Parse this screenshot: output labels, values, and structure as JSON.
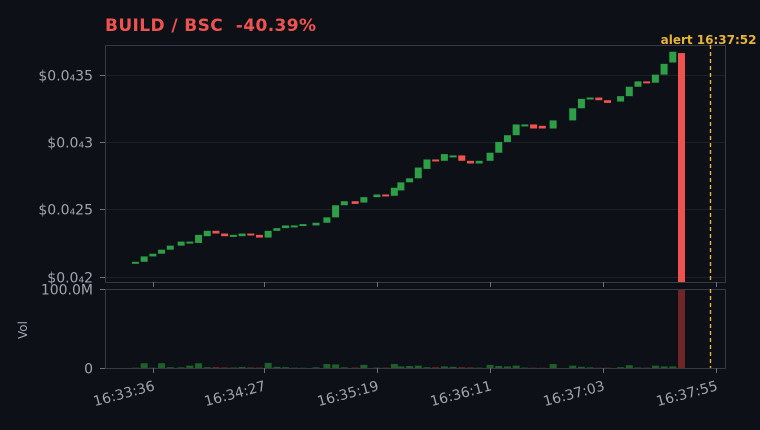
{
  "title": "BUILD / BSC  -40.39%",
  "colors": {
    "up": "#2e9e47",
    "down": "#ef5350",
    "alert": "#e8b339",
    "volUp": "#1f5f2c",
    "volDown": "#6e2626",
    "grid": "#1c2029",
    "frame": "#353a44"
  },
  "chart_data": [
    {
      "type": "candlestick",
      "title": "BUILD / BSC  -40.39%",
      "ylim": [
        1.96,
        3.72
      ],
      "y_ticks": [
        {
          "value": 2.0,
          "label": "$0.0₄2"
        },
        {
          "value": 2.5,
          "label": "$0.0₄25"
        },
        {
          "value": 3.0,
          "label": "$0.0₄3"
        },
        {
          "value": 3.5,
          "label": "$0.0₄35"
        }
      ],
      "x_ticks": [
        "16:33:36",
        "16:34:27",
        "16:35:19",
        "16:36:11",
        "16:37:03",
        "16:37:55"
      ],
      "x_tick_seconds": [
        0,
        51,
        103,
        155,
        207,
        259
      ],
      "xlim_seconds": [
        -22,
        263
      ],
      "grid": true,
      "annotations": [
        {
          "text": "alert 16:37:52",
          "x_seconds": 256
        }
      ],
      "candles": [
        {
          "t": -8,
          "o": 2.1,
          "c": 2.11
        },
        {
          "t": -4,
          "o": 2.11,
          "c": 2.15
        },
        {
          "t": 0,
          "o": 2.15,
          "c": 2.17
        },
        {
          "t": 4,
          "o": 2.17,
          "c": 2.2
        },
        {
          "t": 8,
          "o": 2.2,
          "c": 2.23
        },
        {
          "t": 13,
          "o": 2.23,
          "c": 2.26
        },
        {
          "t": 17,
          "o": 2.25,
          "c": 2.26
        },
        {
          "t": 21,
          "o": 2.25,
          "c": 2.31
        },
        {
          "t": 25,
          "o": 2.3,
          "c": 2.34
        },
        {
          "t": 29,
          "o": 2.34,
          "c": 2.32
        },
        {
          "t": 33,
          "o": 2.32,
          "c": 2.3
        },
        {
          "t": 37,
          "o": 2.3,
          "c": 2.31
        },
        {
          "t": 41,
          "o": 2.3,
          "c": 2.32
        },
        {
          "t": 45,
          "o": 2.32,
          "c": 2.31
        },
        {
          "t": 49,
          "o": 2.31,
          "c": 2.29
        },
        {
          "t": 53,
          "o": 2.29,
          "c": 2.34
        },
        {
          "t": 57,
          "o": 2.34,
          "c": 2.36
        },
        {
          "t": 61,
          "o": 2.36,
          "c": 2.38
        },
        {
          "t": 65,
          "o": 2.38,
          "c": 2.38
        },
        {
          "t": 69,
          "o": 2.38,
          "c": 2.39
        },
        {
          "t": 75,
          "o": 2.38,
          "c": 2.4
        },
        {
          "t": 80,
          "o": 2.4,
          "c": 2.44
        },
        {
          "t": 84,
          "o": 2.44,
          "c": 2.53
        },
        {
          "t": 88,
          "o": 2.53,
          "c": 2.56
        },
        {
          "t": 93,
          "o": 2.56,
          "c": 2.54
        },
        {
          "t": 97,
          "o": 2.55,
          "c": 2.59
        },
        {
          "t": 103,
          "o": 2.59,
          "c": 2.61
        },
        {
          "t": 107,
          "o": 2.61,
          "c": 2.6
        },
        {
          "t": 111,
          "o": 2.6,
          "c": 2.66
        },
        {
          "t": 114,
          "o": 2.64,
          "c": 2.7
        },
        {
          "t": 118,
          "o": 2.7,
          "c": 2.73
        },
        {
          "t": 122,
          "o": 2.73,
          "c": 2.81
        },
        {
          "t": 126,
          "o": 2.8,
          "c": 2.87
        },
        {
          "t": 130,
          "o": 2.87,
          "c": 2.86
        },
        {
          "t": 134,
          "o": 2.86,
          "c": 2.91
        },
        {
          "t": 138,
          "o": 2.9,
          "c": 2.9
        },
        {
          "t": 142,
          "o": 2.9,
          "c": 2.86
        },
        {
          "t": 146,
          "o": 2.86,
          "c": 2.84
        },
        {
          "t": 150,
          "o": 2.84,
          "c": 2.86
        },
        {
          "t": 155,
          "o": 2.86,
          "c": 2.92
        },
        {
          "t": 159,
          "o": 2.92,
          "c": 3.0
        },
        {
          "t": 163,
          "o": 3.0,
          "c": 3.05
        },
        {
          "t": 167,
          "o": 3.05,
          "c": 3.13
        },
        {
          "t": 171,
          "o": 3.12,
          "c": 3.13
        },
        {
          "t": 175,
          "o": 3.13,
          "c": 3.1
        },
        {
          "t": 179,
          "o": 3.12,
          "c": 3.1
        },
        {
          "t": 184,
          "o": 3.1,
          "c": 3.16
        },
        {
          "t": 193,
          "o": 3.16,
          "c": 3.25
        },
        {
          "t": 197,
          "o": 3.25,
          "c": 3.32
        },
        {
          "t": 201,
          "o": 3.32,
          "c": 3.33
        },
        {
          "t": 205,
          "o": 3.33,
          "c": 3.31
        },
        {
          "t": 209,
          "o": 3.31,
          "c": 3.29
        },
        {
          "t": 215,
          "o": 3.3,
          "c": 3.34
        },
        {
          "t": 219,
          "o": 3.34,
          "c": 3.41
        },
        {
          "t": 223,
          "o": 3.41,
          "c": 3.45
        },
        {
          "t": 227,
          "o": 3.45,
          "c": 3.44
        },
        {
          "t": 231,
          "o": 3.44,
          "c": 3.5
        },
        {
          "t": 235,
          "o": 3.5,
          "c": 3.58
        },
        {
          "t": 239,
          "o": 3.59,
          "c": 3.67
        },
        {
          "t": 243,
          "o": 3.66,
          "c": 1.96
        }
      ]
    },
    {
      "type": "bar",
      "ylabel": "Vol",
      "ylim": [
        0,
        100
      ],
      "y_ticks": [
        {
          "value": 0,
          "label": "0"
        },
        {
          "value": 100,
          "label": "100.0M"
        }
      ],
      "bars": [
        {
          "t": -8,
          "v": 0.3
        },
        {
          "t": -4,
          "v": 6
        },
        {
          "t": 0,
          "v": 0.4
        },
        {
          "t": 4,
          "v": 6
        },
        {
          "t": 8,
          "v": 1
        },
        {
          "t": 13,
          "v": 0.8
        },
        {
          "t": 17,
          "v": 3
        },
        {
          "t": 21,
          "v": 6
        },
        {
          "t": 25,
          "v": 1
        },
        {
          "t": 29,
          "v": 1.2
        },
        {
          "t": 33,
          "v": 0.8
        },
        {
          "t": 37,
          "v": 0.6
        },
        {
          "t": 41,
          "v": 1.2
        },
        {
          "t": 45,
          "v": 0.8
        },
        {
          "t": 49,
          "v": 0.6
        },
        {
          "t": 53,
          "v": 6.5
        },
        {
          "t": 57,
          "v": 1.5
        },
        {
          "t": 61,
          "v": 1
        },
        {
          "t": 65,
          "v": 0.4
        },
        {
          "t": 69,
          "v": 0.3
        },
        {
          "t": 75,
          "v": 0.8
        },
        {
          "t": 80,
          "v": 5
        },
        {
          "t": 84,
          "v": 4.5
        },
        {
          "t": 88,
          "v": 0.8
        },
        {
          "t": 93,
          "v": 0.6
        },
        {
          "t": 97,
          "v": 4
        },
        {
          "t": 103,
          "v": 0.5
        },
        {
          "t": 107,
          "v": 0.5
        },
        {
          "t": 111,
          "v": 5
        },
        {
          "t": 114,
          "v": 2
        },
        {
          "t": 118,
          "v": 2.5
        },
        {
          "t": 122,
          "v": 3
        },
        {
          "t": 126,
          "v": 1
        },
        {
          "t": 130,
          "v": 1
        },
        {
          "t": 134,
          "v": 2
        },
        {
          "t": 138,
          "v": 1.5
        },
        {
          "t": 142,
          "v": 1
        },
        {
          "t": 146,
          "v": 0.8
        },
        {
          "t": 150,
          "v": 0.5
        },
        {
          "t": 155,
          "v": 4
        },
        {
          "t": 159,
          "v": 2.5
        },
        {
          "t": 163,
          "v": 2
        },
        {
          "t": 167,
          "v": 3
        },
        {
          "t": 171,
          "v": 0.5
        },
        {
          "t": 175,
          "v": 0.4
        },
        {
          "t": 179,
          "v": 0.3
        },
        {
          "t": 184,
          "v": 5
        },
        {
          "t": 193,
          "v": 3
        },
        {
          "t": 197,
          "v": 1.5
        },
        {
          "t": 201,
          "v": 0.8
        },
        {
          "t": 205,
          "v": 0.4
        },
        {
          "t": 209,
          "v": 0.4
        },
        {
          "t": 215,
          "v": 1
        },
        {
          "t": 219,
          "v": 3.5
        },
        {
          "t": 223,
          "v": 0.6
        },
        {
          "t": 227,
          "v": 0.5
        },
        {
          "t": 231,
          "v": 3
        },
        {
          "t": 235,
          "v": 2
        },
        {
          "t": 239,
          "v": 2
        },
        {
          "t": 243,
          "v": 100
        }
      ]
    }
  ]
}
